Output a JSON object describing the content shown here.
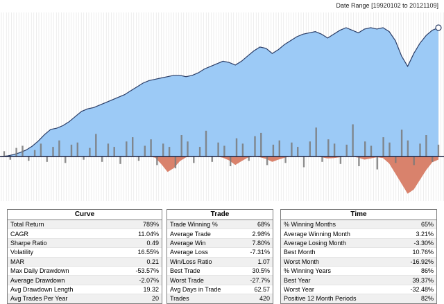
{
  "header": {
    "date_range": "Date Range [19920102 to 20121109]"
  },
  "colors": {
    "equity_fill": "#9ccaf6",
    "equity_line": "#2b3d66",
    "drawdown_fill": "#d9826c",
    "trade_bar": "#7a7a7a",
    "grid": "#e2e2e2",
    "baseline": "#1a2040"
  },
  "chart_data": {
    "type": "area",
    "description_series": [
      "equity curve",
      "drawdown",
      "trade bars"
    ],
    "equity": [
      0,
      0.5,
      1.5,
      3,
      5,
      8,
      12,
      17,
      21,
      22,
      24,
      27,
      31,
      35,
      37,
      38,
      40,
      42,
      44,
      46,
      48,
      51,
      54,
      57,
      59,
      60,
      61,
      62,
      63,
      63,
      62,
      63,
      65,
      68,
      70,
      72,
      74,
      73,
      71,
      74,
      78,
      82,
      85,
      84,
      80,
      83,
      87,
      90,
      93,
      95,
      96,
      97,
      95,
      92,
      95,
      98,
      100,
      98,
      96,
      99,
      100,
      99,
      100,
      97,
      90,
      78,
      70,
      80,
      88,
      94,
      98,
      100
    ],
    "equity_peak": 100,
    "drawdown": [
      0,
      0,
      0,
      0,
      0,
      0,
      0,
      0,
      0,
      0,
      0,
      0,
      0,
      0,
      0,
      0,
      0,
      0,
      0,
      0,
      0,
      0,
      0,
      0,
      0,
      -3,
      -20,
      -40,
      -30,
      -12,
      -2,
      0,
      0,
      0,
      0,
      0,
      -3,
      -10,
      -22,
      -12,
      -3,
      0,
      -2,
      -6,
      -14,
      -8,
      -3,
      0,
      0,
      0,
      0,
      0,
      -2,
      -5,
      -4,
      -2,
      0,
      0,
      -3,
      -8,
      -5,
      -2,
      -4,
      -18,
      -44,
      -70,
      -96,
      -85,
      -60,
      -35,
      -15,
      -8
    ],
    "drawdown_min": -100,
    "trade_bars": [
      5,
      -3,
      8,
      10,
      -4,
      6,
      12,
      -5,
      9,
      15,
      -6,
      11,
      13,
      -3,
      8,
      21,
      -5,
      12,
      9,
      -7,
      14,
      18,
      -4,
      10,
      16,
      -8,
      12,
      9,
      -11,
      20,
      14,
      -6,
      9,
      24,
      -5,
      13,
      10,
      -9,
      17,
      12,
      -4,
      19,
      22,
      -8,
      11,
      15,
      -6,
      13,
      9,
      -10,
      14,
      27,
      -5,
      16,
      12,
      -7,
      11,
      30,
      -9,
      14,
      10,
      -12,
      18,
      13,
      -6,
      25,
      15,
      -8,
      12,
      20,
      -5,
      11
    ]
  },
  "curve": {
    "title": "Curve",
    "rows": [
      {
        "label": "Total Return",
        "value": "789%"
      },
      {
        "label": "CAGR",
        "value": "11.04%"
      },
      {
        "label": "Sharpe Ratio",
        "value": "0.49"
      },
      {
        "label": "Volatility",
        "value": "16.55%"
      },
      {
        "label": "MAR",
        "value": "0.21"
      },
      {
        "label": "Max Daily Drawdown",
        "value": "-53.57%"
      },
      {
        "label": "Average Drawdown",
        "value": "-2.07%"
      },
      {
        "label": "Avg Drawdown Length",
        "value": "19.32"
      },
      {
        "label": "Avg Trades Per Year",
        "value": "20"
      }
    ]
  },
  "trade": {
    "title": "Trade",
    "rows": [
      {
        "label": "Trade Winning %",
        "value": "68%"
      },
      {
        "label": "Average Trade",
        "value": "2.98%"
      },
      {
        "label": "Average Win",
        "value": "7.80%"
      },
      {
        "label": "Average Loss",
        "value": "-7.31%"
      },
      {
        "label": "Win/Loss Ratio",
        "value": "1.07"
      },
      {
        "label": "Best Trade",
        "value": "30.5%"
      },
      {
        "label": "Worst Trade",
        "value": "-27.7%"
      },
      {
        "label": "Avg Days in Trade",
        "value": "62.57"
      },
      {
        "label": "Trades",
        "value": "420"
      }
    ]
  },
  "time": {
    "title": "Time",
    "rows": [
      {
        "label": "% Winning Months",
        "value": "65%"
      },
      {
        "label": "Average Winning Month",
        "value": "3.21%"
      },
      {
        "label": "Average Losing Month",
        "value": "-3.30%"
      },
      {
        "label": "Best Month",
        "value": "10.76%"
      },
      {
        "label": "Worst Month",
        "value": "-16.92%"
      },
      {
        "label": "% Winning Years",
        "value": "86%"
      },
      {
        "label": "Best Year",
        "value": "39.37%"
      },
      {
        "label": "Worst Year",
        "value": "-32.48%"
      },
      {
        "label": "Positive 12 Month Periods",
        "value": "82%"
      }
    ]
  }
}
